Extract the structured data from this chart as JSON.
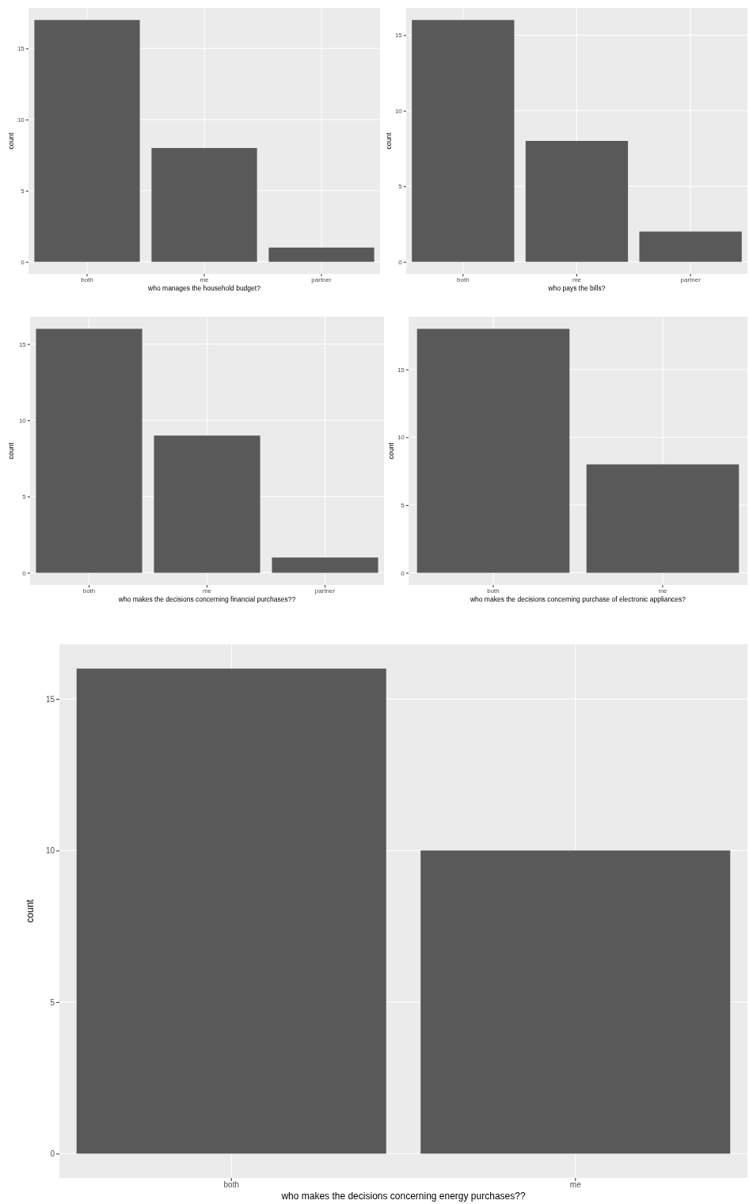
{
  "chart_data": [
    {
      "type": "bar",
      "xlabel": "who manages the household budget?",
      "ylabel": "count",
      "categories": [
        "both",
        "me",
        "partner"
      ],
      "values": [
        17,
        8,
        1
      ],
      "color": "#595959",
      "ylim": [
        -0.85,
        17.85
      ],
      "yticks": [
        0,
        5,
        10,
        15
      ],
      "grid": true
    },
    {
      "type": "bar",
      "xlabel": "who pays the bills?",
      "ylabel": "count",
      "categories": [
        "both",
        "me",
        "partner"
      ],
      "values": [
        16,
        8,
        2
      ],
      "color": "#595959",
      "ylim": [
        -0.8,
        16.8
      ],
      "yticks": [
        0,
        5,
        10,
        15
      ],
      "grid": true
    },
    {
      "type": "bar",
      "xlabel": "who makes the decisions concerning financial purchases??",
      "ylabel": "count",
      "categories": [
        "both",
        "me",
        "partner"
      ],
      "values": [
        16,
        9,
        1
      ],
      "color": "#595959",
      "ylim": [
        -0.8,
        16.8
      ],
      "yticks": [
        0,
        5,
        10,
        15
      ],
      "grid": true
    },
    {
      "type": "bar",
      "xlabel": "who makes the decisions concerning purchase of electronic appliances?",
      "ylabel": "count",
      "categories": [
        "both",
        "me"
      ],
      "values": [
        18,
        8
      ],
      "color": "#595959",
      "ylim": [
        -0.9,
        18.9
      ],
      "yticks": [
        0,
        5,
        10,
        15
      ],
      "grid": true
    },
    {
      "type": "bar",
      "xlabel": "who makes the decisions concerning energy purchases??",
      "ylabel": "count",
      "categories": [
        "both",
        "me"
      ],
      "values": [
        16,
        10
      ],
      "color": "#595959",
      "ylim": [
        -0.8,
        16.8
      ],
      "yticks": [
        0,
        5,
        10,
        15
      ],
      "grid": true
    }
  ]
}
